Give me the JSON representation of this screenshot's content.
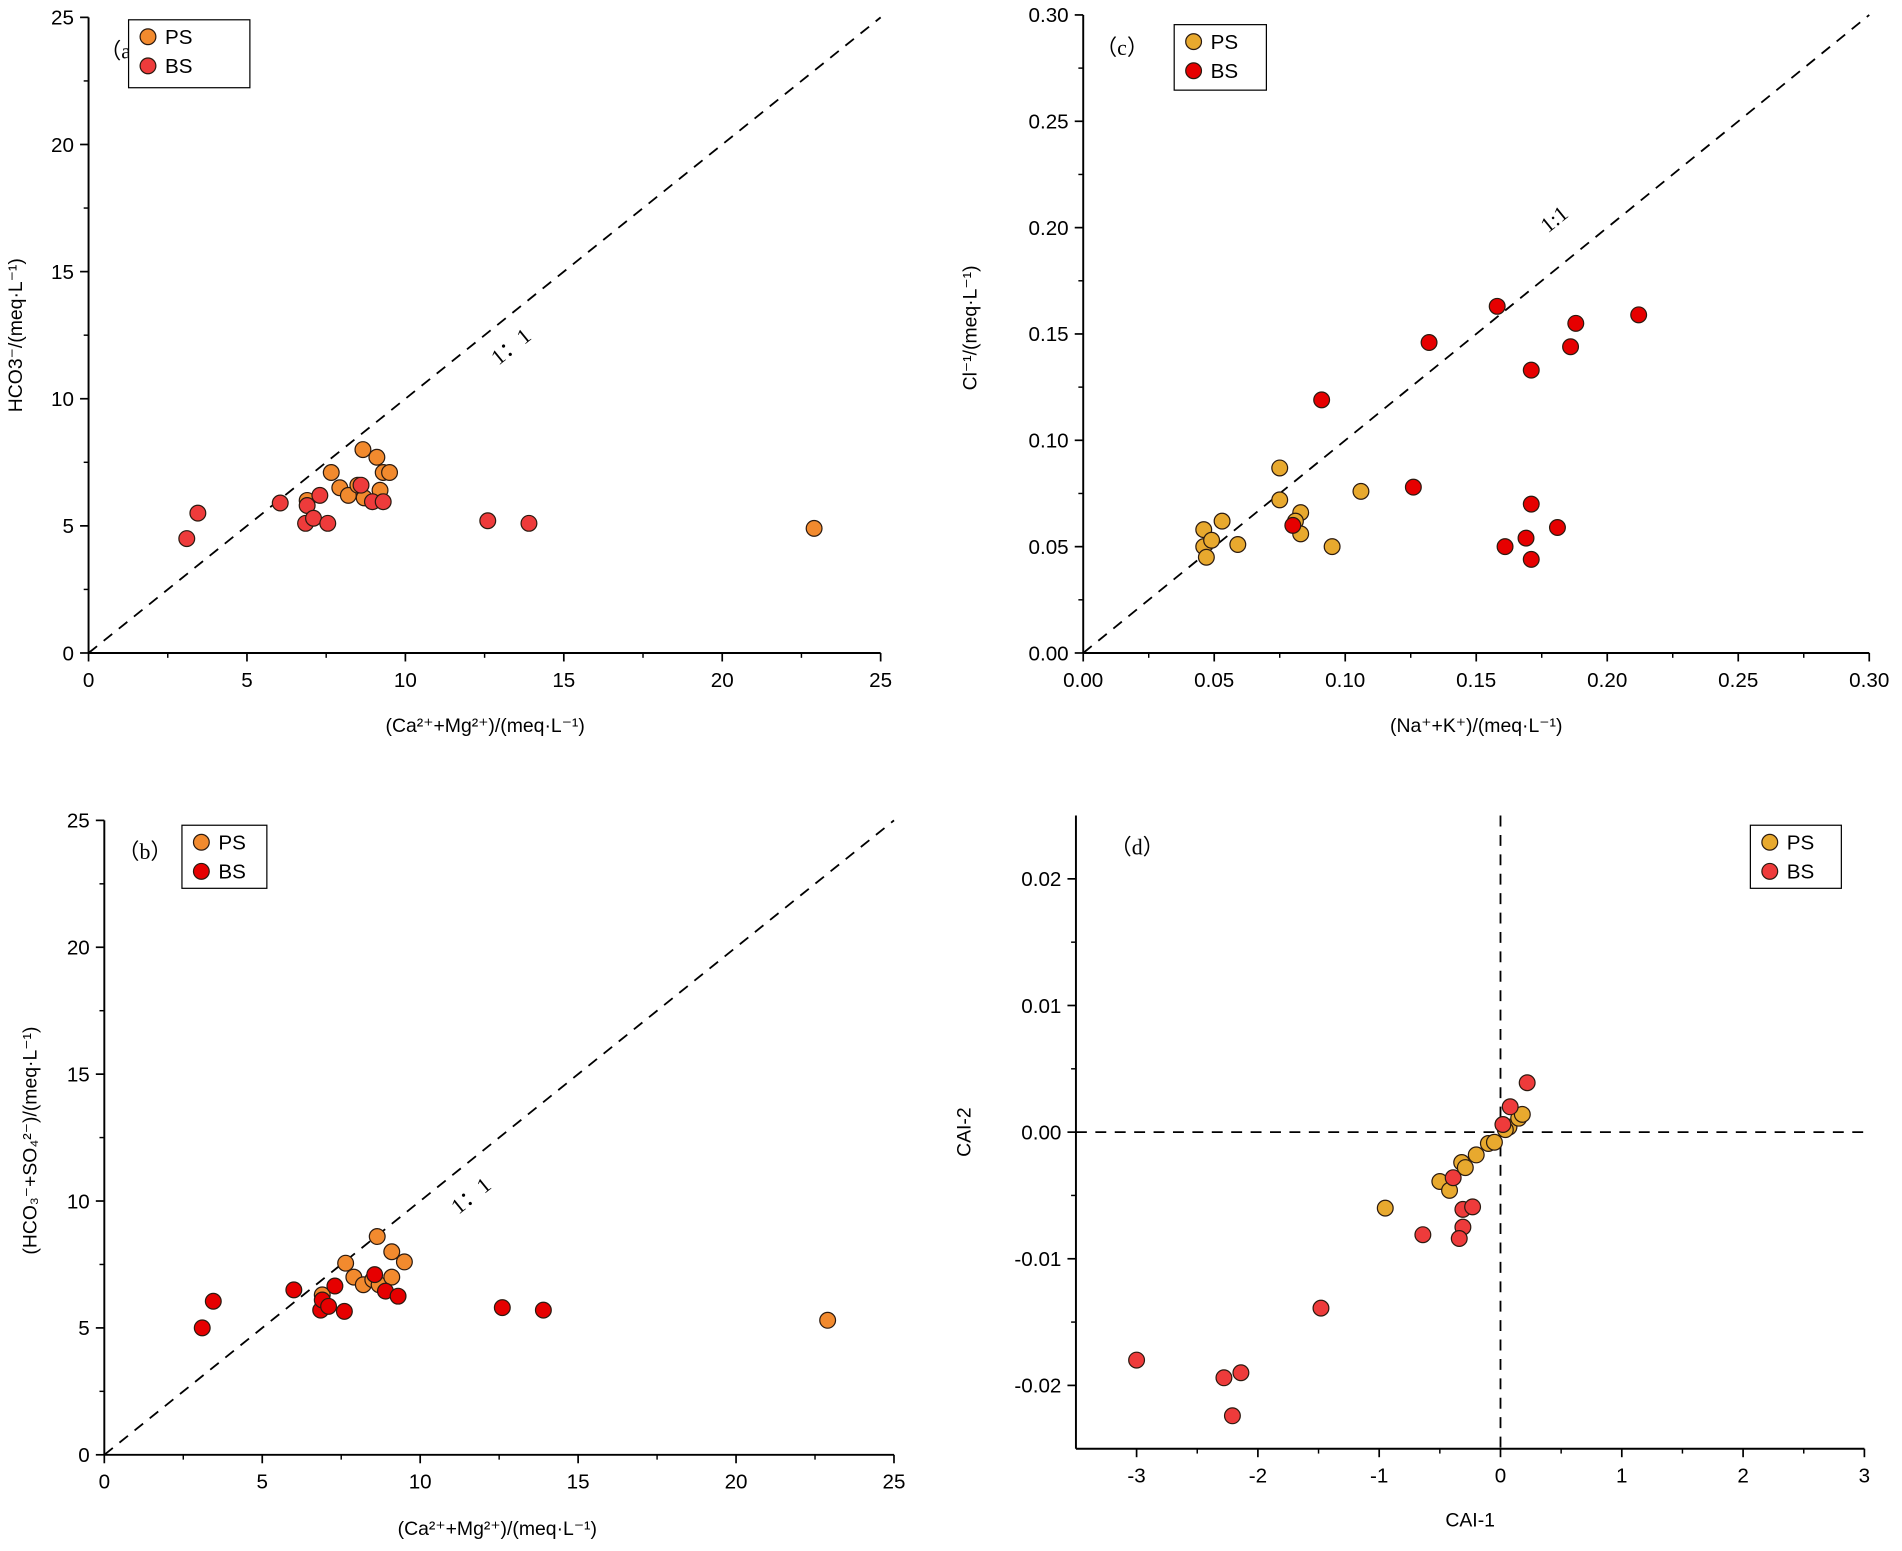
{
  "chart_data": [
    {
      "id": "a",
      "type": "scatter",
      "panel_label": "（a）",
      "xlabel": "(Ca²⁺+Mg²⁺)/(meq·L⁻¹)",
      "ylabel": "HCO3⁻/(meq·L⁻¹)",
      "xlim": [
        0,
        25
      ],
      "ylim": [
        0,
        25
      ],
      "xticks": [
        0,
        5,
        10,
        15,
        20,
        25
      ],
      "yticks": [
        0,
        5,
        10,
        15,
        20,
        25
      ],
      "tick_decimals": 0,
      "ref_line": {
        "type": "1:1",
        "label": "1：1"
      },
      "legend": "top-left",
      "series": [
        {
          "name": "PS",
          "color": "#f28a2e",
          "points": [
            [
              8.66,
              8.0
            ],
            [
              9.1,
              7.7
            ],
            [
              7.66,
              7.1
            ],
            [
              9.3,
              7.1
            ],
            [
              9.5,
              7.1
            ],
            [
              7.93,
              6.5
            ],
            [
              8.2,
              6.2
            ],
            [
              8.7,
              6.1
            ],
            [
              9.2,
              6.4
            ],
            [
              8.5,
              6.6
            ],
            [
              6.9,
              6.0
            ],
            [
              22.9,
              4.9
            ]
          ]
        },
        {
          "name": "BS",
          "color": "#ee3b3b",
          "points": [
            [
              3.1,
              4.5
            ],
            [
              3.45,
              5.5
            ],
            [
              6.05,
              5.9
            ],
            [
              6.9,
              5.8
            ],
            [
              7.3,
              6.2
            ],
            [
              6.85,
              5.1
            ],
            [
              7.1,
              5.3
            ],
            [
              7.55,
              5.1
            ],
            [
              8.6,
              6.6
            ],
            [
              8.96,
              5.95
            ],
            [
              9.3,
              5.95
            ],
            [
              12.6,
              5.2
            ],
            [
              13.9,
              5.1
            ]
          ]
        }
      ]
    },
    {
      "id": "c",
      "type": "scatter",
      "panel_label": "（c）",
      "xlabel": "(Na⁺+K⁺)/(meq·L⁻¹)",
      "ylabel": "Cl⁻¹/(meq·L⁻¹)",
      "xlim": [
        0,
        0.3
      ],
      "ylim": [
        0,
        0.3
      ],
      "xticks": [
        0,
        0.05,
        0.1,
        0.15,
        0.2,
        0.25,
        0.3
      ],
      "yticks": [
        0,
        0.05,
        0.1,
        0.15,
        0.2,
        0.25,
        0.3
      ],
      "tick_decimals": 2,
      "ref_line": {
        "type": "1:1",
        "label": "1:1"
      },
      "legend": "top-left",
      "series": [
        {
          "name": "PS",
          "color": "#e8a92e",
          "points": [
            [
              0.046,
              0.058
            ],
            [
              0.046,
              0.05
            ],
            [
              0.049,
              0.053
            ],
            [
              0.047,
              0.045
            ],
            [
              0.053,
              0.062
            ],
            [
              0.059,
              0.051
            ],
            [
              0.075,
              0.087
            ],
            [
              0.075,
              0.072
            ],
            [
              0.083,
              0.066
            ],
            [
              0.081,
              0.062
            ],
            [
              0.083,
              0.056
            ],
            [
              0.095,
              0.05
            ],
            [
              0.106,
              0.076
            ]
          ]
        },
        {
          "name": "BS",
          "color": "#e60000",
          "points": [
            [
              0.091,
              0.119
            ],
            [
              0.132,
              0.146
            ],
            [
              0.158,
              0.163
            ],
            [
              0.212,
              0.159
            ],
            [
              0.188,
              0.155
            ],
            [
              0.171,
              0.133
            ],
            [
              0.186,
              0.144
            ],
            [
              0.126,
              0.078
            ],
            [
              0.08,
              0.06
            ],
            [
              0.171,
              0.07
            ],
            [
              0.181,
              0.059
            ],
            [
              0.169,
              0.054
            ],
            [
              0.161,
              0.05
            ],
            [
              0.171,
              0.044
            ]
          ]
        }
      ]
    },
    {
      "id": "b",
      "type": "scatter",
      "panel_label": "（b）",
      "xlabel": "(Ca²⁺+Mg²⁺)/(meq·L⁻¹)",
      "ylabel": "(HCO₃⁻+SO₄²⁻)/(meq·L⁻¹)",
      "xlim": [
        0,
        25
      ],
      "ylim": [
        0,
        25
      ],
      "xticks": [
        0,
        5,
        10,
        15,
        20,
        25
      ],
      "yticks": [
        0,
        5,
        10,
        15,
        20,
        25
      ],
      "tick_decimals": 0,
      "ref_line": {
        "type": "1:1",
        "label": "1：1"
      },
      "legend": "top-left",
      "series": [
        {
          "name": "PS",
          "color": "#f28a2e",
          "points": [
            [
              8.64,
              8.6
            ],
            [
              9.1,
              8.0
            ],
            [
              9.5,
              7.6
            ],
            [
              7.64,
              7.55
            ],
            [
              7.9,
              7.0
            ],
            [
              8.2,
              6.7
            ],
            [
              8.5,
              6.9
            ],
            [
              8.7,
              6.7
            ],
            [
              9.1,
              7.0
            ],
            [
              6.9,
              6.3
            ],
            [
              22.9,
              5.3
            ]
          ]
        },
        {
          "name": "BS",
          "color": "#e60000",
          "points": [
            [
              3.1,
              5.0
            ],
            [
              3.45,
              6.05
            ],
            [
              6.0,
              6.5
            ],
            [
              6.85,
              5.7
            ],
            [
              6.9,
              6.1
            ],
            [
              7.1,
              5.85
            ],
            [
              7.3,
              6.65
            ],
            [
              7.6,
              5.65
            ],
            [
              8.56,
              7.1
            ],
            [
              8.9,
              6.45
            ],
            [
              9.3,
              6.25
            ],
            [
              12.6,
              5.8
            ],
            [
              13.9,
              5.7
            ]
          ]
        }
      ]
    },
    {
      "id": "d",
      "type": "scatter",
      "panel_label": "（d）",
      "xlabel": "CAI-1",
      "ylabel": "CAI-2",
      "xlim": [
        -3.5,
        3
      ],
      "ylim": [
        -0.025,
        0.025
      ],
      "xticks": [
        -3,
        -2,
        -1,
        0,
        1,
        2,
        3
      ],
      "yticks": [
        -0.02,
        -0.01,
        0,
        0.01,
        0.02
      ],
      "tick_decimals": [
        0,
        2
      ],
      "ref_line": {
        "type": "zero-cross"
      },
      "legend": "top-right",
      "series": [
        {
          "name": "PS",
          "color": "#e8a92e",
          "points": [
            [
              -0.95,
              -0.006
            ],
            [
              -0.5,
              -0.0039
            ],
            [
              -0.42,
              -0.0046
            ],
            [
              -0.32,
              -0.0024
            ],
            [
              -0.29,
              -0.0028
            ],
            [
              -0.2,
              -0.0018
            ],
            [
              -0.1,
              -0.0009
            ],
            [
              -0.05,
              -0.0008
            ],
            [
              0.07,
              0.0004
            ],
            [
              0.15,
              0.0011
            ],
            [
              0.18,
              0.0014
            ],
            [
              0.04,
              0.0002
            ]
          ]
        },
        {
          "name": "BS",
          "color": "#ee3b3b",
          "points": [
            [
              0.22,
              0.0039
            ],
            [
              0.08,
              0.002
            ],
            [
              0.02,
              0.0006
            ],
            [
              -0.39,
              -0.0036
            ],
            [
              -0.64,
              -0.0081
            ],
            [
              -0.31,
              -0.0061
            ],
            [
              -0.23,
              -0.0059
            ],
            [
              -0.31,
              -0.0075
            ],
            [
              -0.34,
              -0.0084
            ],
            [
              -1.48,
              -0.0139
            ],
            [
              -3.0,
              -0.018
            ],
            [
              -2.28,
              -0.0194
            ],
            [
              -2.14,
              -0.019
            ],
            [
              -2.21,
              -0.0224
            ]
          ]
        }
      ]
    }
  ]
}
